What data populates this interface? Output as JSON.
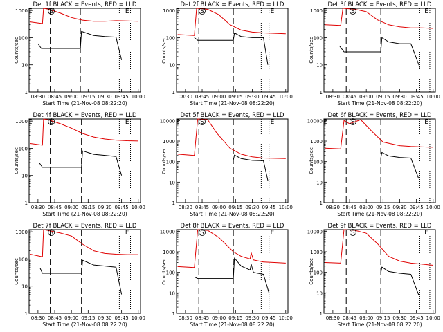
{
  "chart_data": [
    {
      "type": "line",
      "title": "Det 1f BLACK = Events, RED = LLD",
      "xlabel": "Start Time (21-Nov-08 08:22:20)",
      "ylabel": "Counts/sec",
      "x_ticks": [
        "08:30",
        "08:45",
        "09:00",
        "09:15",
        "09:30",
        "09:45",
        "10:00"
      ],
      "y_ticks": [
        "1",
        "10",
        "100",
        "1000"
      ],
      "ylim": [
        1,
        1200
      ],
      "y_scale": "log",
      "markers": {
        "S": "08:42",
        "E": "09:50",
        "E_left": "08:23"
      },
      "vlines_dashed": [
        "08:41",
        "09:08"
      ],
      "vlines_dotted": [
        "09:43",
        "09:53"
      ],
      "series": [
        {
          "name": "RED",
          "color": "#e00000",
          "x": [
            "08:23",
            "08:34",
            "08:35",
            "08:40",
            "08:50",
            "09:00",
            "09:10",
            "09:20",
            "09:30",
            "09:40",
            "09:50",
            "10:00"
          ],
          "y": [
            380,
            330,
            1200,
            1100,
            800,
            550,
            440,
            400,
            400,
            420,
            410,
            400
          ]
        },
        {
          "name": "BLACK",
          "color": "#000000",
          "x": [
            "08:30",
            "08:33",
            "09:08",
            "09:09",
            "09:20",
            "09:30",
            "09:40",
            "09:45"
          ],
          "y": [
            60,
            40,
            40,
            170,
            120,
            110,
            105,
            15
          ]
        }
      ]
    },
    {
      "type": "line",
      "title": "Det 2f BLACK = Events, RED = LLD",
      "xlabel": "Start Time (21-Nov-08 08:22:20)",
      "ylabel": "Counts/sec",
      "x_ticks": [
        "08:30",
        "08:45",
        "09:00",
        "09:15",
        "09:30",
        "09:45",
        "10:00"
      ],
      "y_ticks": [
        "1",
        "10",
        "100",
        "1000"
      ],
      "ylim": [
        1,
        1200
      ],
      "y_scale": "log",
      "markers": {
        "S": "08:45",
        "E": "09:48",
        "E_left": "08:23"
      },
      "vlines_dashed": [
        "08:42",
        "09:13"
      ],
      "vlines_dotted": [
        "09:38",
        "09:45"
      ],
      "series": [
        {
          "name": "RED",
          "color": "#e00000",
          "x": [
            "08:23",
            "08:38",
            "08:40",
            "08:50",
            "09:00",
            "09:10",
            "09:20",
            "09:30",
            "09:40",
            "09:50",
            "10:00"
          ],
          "y": [
            130,
            120,
            1200,
            1100,
            700,
            300,
            190,
            160,
            150,
            145,
            140
          ]
        },
        {
          "name": "BLACK",
          "color": "#000000",
          "x": [
            "08:38",
            "08:41",
            "09:13",
            "09:14",
            "09:20",
            "09:30",
            "09:40",
            "09:44"
          ],
          "y": [
            100,
            80,
            80,
            150,
            110,
            100,
            100,
            10
          ]
        }
      ]
    },
    {
      "type": "line",
      "title": "Det 3f BLACK = Events, RED = LLD",
      "xlabel": "Start Time (21-Nov-08 08:22:20)",
      "ylabel": "Counts/sec",
      "x_ticks": [
        "08:30",
        "08:45",
        "09:00",
        "09:15",
        "09:30",
        "09:45",
        "10:00"
      ],
      "y_ticks": [
        "1",
        "10",
        "100",
        "1000"
      ],
      "ylim": [
        1,
        1200
      ],
      "y_scale": "log",
      "markers": {
        "S": "08:48",
        "E": "09:54",
        "E_left": "08:23"
      },
      "vlines_dashed": [
        "08:42",
        "09:13"
      ],
      "vlines_dotted": [
        "09:48",
        "09:57"
      ],
      "series": [
        {
          "name": "RED",
          "color": "#e00000",
          "x": [
            "08:23",
            "08:37",
            "08:39",
            "08:50",
            "09:00",
            "09:10",
            "09:20",
            "09:30",
            "09:40",
            "09:50",
            "10:00"
          ],
          "y": [
            300,
            280,
            1200,
            1100,
            900,
            450,
            300,
            250,
            230,
            230,
            220
          ]
        },
        {
          "name": "BLACK",
          "color": "#000000",
          "x": [
            "08:36",
            "08:40",
            "09:13",
            "09:14",
            "09:20",
            "09:30",
            "09:40",
            "09:48"
          ],
          "y": [
            50,
            30,
            30,
            100,
            70,
            60,
            60,
            8
          ]
        }
      ]
    },
    {
      "type": "line",
      "title": "Det 4f BLACK = Events, RED = LLD",
      "xlabel": "Start Time (21-Nov-08 08:22:20)",
      "ylabel": "Counts/sec",
      "x_ticks": [
        "08:30",
        "08:45",
        "09:00",
        "09:15",
        "09:30",
        "09:45",
        "10:00"
      ],
      "y_ticks": [
        "1",
        "10",
        "100",
        "1000"
      ],
      "ylim": [
        1,
        1200
      ],
      "y_scale": "log",
      "markers": {
        "S": "08:42",
        "E": "09:50",
        "E_left": "08:23"
      },
      "vlines_dashed": [
        "08:41",
        "09:09"
      ],
      "vlines_dotted": [
        "09:43",
        "09:53"
      ],
      "series": [
        {
          "name": "RED",
          "color": "#e00000",
          "x": [
            "08:23",
            "08:34",
            "08:35",
            "08:40",
            "08:50",
            "09:00",
            "09:10",
            "09:20",
            "09:30",
            "09:40",
            "09:50",
            "10:00"
          ],
          "y": [
            150,
            130,
            1200,
            1100,
            800,
            550,
            350,
            260,
            220,
            200,
            190,
            185
          ]
        },
        {
          "name": "BLACK",
          "color": "#000000",
          "x": [
            "08:31",
            "08:34",
            "09:09",
            "09:10",
            "09:20",
            "09:30",
            "09:40",
            "09:45"
          ],
          "y": [
            30,
            20,
            20,
            80,
            60,
            55,
            50,
            10
          ]
        }
      ]
    },
    {
      "type": "line",
      "title": "Det 5f BLACK = Events, RED = LLD",
      "xlabel": "Start Time (21-Nov-08 08:22:20)",
      "ylabel": "Counts/sec",
      "x_ticks": [
        "08:30",
        "08:45",
        "09:00",
        "09:15",
        "09:30",
        "09:45",
        "10:00"
      ],
      "y_ticks": [
        "1",
        "10",
        "100",
        "1000",
        "10000"
      ],
      "ylim": [
        1,
        12000
      ],
      "y_scale": "log",
      "markers": {
        "S": "08:45",
        "E": "09:48",
        "E_left": "08:23"
      },
      "vlines_dashed": [
        "08:42",
        "09:13"
      ],
      "vlines_dotted": [
        "09:38",
        "09:45"
      ],
      "series": [
        {
          "name": "RED",
          "color": "#e00000",
          "x": [
            "08:23",
            "08:38",
            "08:41",
            "08:50",
            "08:58",
            "09:10",
            "09:20",
            "09:30",
            "09:40",
            "09:50",
            "10:00"
          ],
          "y": [
            230,
            200,
            12000,
            11000,
            2500,
            450,
            230,
            170,
            150,
            145,
            140
          ]
        },
        {
          "name": "BLACK",
          "color": "#000000",
          "x": [
            "09:13",
            "09:14",
            "09:20",
            "09:30",
            "09:40",
            "09:44"
          ],
          "y": [
            120,
            210,
            140,
            115,
            110,
            12
          ]
        }
      ]
    },
    {
      "type": "line",
      "title": "Det 6f BLACK = Events, RED = LLD",
      "xlabel": "Start Time (21-Nov-08 08:22:20)",
      "ylabel": "Counts/sec",
      "x_ticks": [
        "08:30",
        "08:45",
        "09:00",
        "09:15",
        "09:30",
        "09:45",
        "10:00"
      ],
      "y_ticks": [
        "1",
        "10",
        "100",
        "1000",
        "10000"
      ],
      "ylim": [
        1,
        12000
      ],
      "y_scale": "log",
      "markers": {
        "S": "08:48",
        "E": "09:54",
        "E_left": "08:23"
      },
      "vlines_dashed": [
        "08:42",
        "09:13"
      ],
      "vlines_dotted": [
        "09:48",
        "09:57"
      ],
      "series": [
        {
          "name": "RED",
          "color": "#e00000",
          "x": [
            "08:23",
            "08:37",
            "08:40",
            "08:45",
            "08:55",
            "09:05",
            "09:15",
            "09:30",
            "09:40",
            "09:50",
            "10:00"
          ],
          "y": [
            450,
            420,
            10000,
            7000,
            11000,
            3000,
            900,
            600,
            550,
            520,
            500
          ]
        },
        {
          "name": "BLACK",
          "color": "#000000",
          "x": [
            "09:13",
            "09:14",
            "09:20",
            "09:30",
            "09:40",
            "09:47"
          ],
          "y": [
            150,
            280,
            190,
            160,
            150,
            15
          ]
        }
      ]
    },
    {
      "type": "line",
      "title": "Det 7f BLACK = Events, RED = LLD",
      "xlabel": "Start Time (21-Nov-08 08:22:20)",
      "ylabel": "Counts/sec",
      "x_ticks": [
        "08:30",
        "08:45",
        "09:00",
        "09:15",
        "09:30",
        "09:45",
        "10:00"
      ],
      "y_ticks": [
        "1",
        "10",
        "100",
        "1000"
      ],
      "ylim": [
        1,
        1200
      ],
      "y_scale": "log",
      "markers": {
        "S": "08:42",
        "E": "09:50",
        "E_left": "08:23"
      },
      "vlines_dashed": [
        "08:41",
        "09:09"
      ],
      "vlines_dotted": [
        "09:43",
        "09:53"
      ],
      "series": [
        {
          "name": "RED",
          "color": "#e00000",
          "x": [
            "08:23",
            "08:34",
            "08:35",
            "08:40",
            "08:50",
            "09:00",
            "09:10",
            "09:20",
            "09:30",
            "09:40",
            "09:50",
            "10:00"
          ],
          "y": [
            150,
            120,
            1200,
            1100,
            900,
            700,
            350,
            200,
            160,
            150,
            145,
            145
          ]
        },
        {
          "name": "BLACK",
          "color": "#000000",
          "x": [
            "08:32",
            "08:34",
            "09:09",
            "09:10",
            "09:20",
            "09:30",
            "09:40",
            "09:45"
          ],
          "y": [
            45,
            30,
            30,
            90,
            60,
            55,
            50,
            5
          ]
        }
      ]
    },
    {
      "type": "line",
      "title": "Det 8f BLACK = Events, RED = LLD",
      "xlabel": "Start Time (21-Nov-08 08:22:20)",
      "ylabel": "Counts/sec",
      "x_ticks": [
        "08:30",
        "08:45",
        "09:00",
        "09:15",
        "09:30",
        "09:45",
        "10:00"
      ],
      "y_ticks": [
        "1",
        "10",
        "100",
        "1000",
        "10000"
      ],
      "ylim": [
        1,
        12000
      ],
      "y_scale": "log",
      "markers": {
        "S": "08:45",
        "E": "09:48",
        "E_left": "08:23"
      },
      "vlines_dashed": [
        "08:42",
        "09:13"
      ],
      "vlines_dotted": [
        "09:38",
        "09:45"
      ],
      "series": [
        {
          "name": "RED",
          "color": "#e00000",
          "x": [
            "08:23",
            "08:38",
            "08:41",
            "08:50",
            "09:00",
            "09:13",
            "09:20",
            "09:28",
            "09:29",
            "09:31",
            "09:40",
            "09:50",
            "10:00"
          ],
          "y": [
            190,
            170,
            12000,
            11000,
            5000,
            1000,
            600,
            450,
            900,
            400,
            320,
            300,
            280
          ]
        },
        {
          "name": "BLACK",
          "color": "#000000",
          "x": [
            "08:38",
            "08:41",
            "09:13",
            "09:14",
            "09:20",
            "09:28",
            "09:29",
            "09:31",
            "09:40",
            "09:45"
          ],
          "y": [
            60,
            50,
            50,
            500,
            200,
            130,
            250,
            100,
            80,
            10
          ]
        }
      ]
    },
    {
      "type": "line",
      "title": "Det 9f BLACK = Events, RED = LLD",
      "xlabel": "Start Time (21-Nov-08 08:22:20)",
      "ylabel": "Counts/sec",
      "x_ticks": [
        "08:30",
        "08:45",
        "09:00",
        "09:15",
        "09:30",
        "09:45",
        "10:00"
      ],
      "y_ticks": [
        "1",
        "10",
        "100",
        "1000",
        "10000"
      ],
      "ylim": [
        1,
        12000
      ],
      "y_scale": "log",
      "markers": {
        "S": "08:48",
        "E": "09:54",
        "E_left": "08:23"
      },
      "vlines_dashed": [
        "08:42",
        "09:13"
      ],
      "vlines_dotted": [
        "09:48",
        "09:57"
      ],
      "series": [
        {
          "name": "RED",
          "color": "#e00000",
          "x": [
            "08:23",
            "08:37",
            "08:40",
            "08:50",
            "09:00",
            "09:10",
            "09:20",
            "09:30",
            "09:40",
            "09:50",
            "10:00"
          ],
          "y": [
            300,
            280,
            12000,
            11000,
            8000,
            2500,
            600,
            350,
            280,
            250,
            220
          ]
        },
        {
          "name": "BLACK",
          "color": "#000000",
          "x": [
            "09:13",
            "09:14",
            "09:20",
            "09:30",
            "09:40",
            "09:47"
          ],
          "y": [
            90,
            180,
            110,
            90,
            80,
            8
          ]
        }
      ]
    }
  ]
}
